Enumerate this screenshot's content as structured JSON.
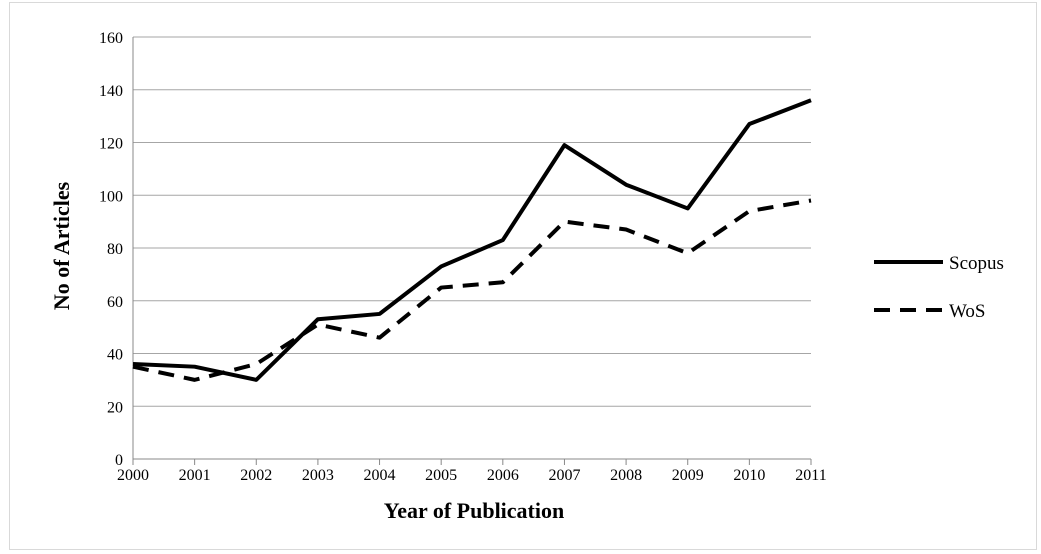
{
  "chart_data": {
    "type": "line",
    "title": "",
    "xlabel": "Year of Publication",
    "ylabel": "No of Articles",
    "x": [
      "2000",
      "2001",
      "2002",
      "2003",
      "2004",
      "2005",
      "2006",
      "2007",
      "2008",
      "2009",
      "2010",
      "2011"
    ],
    "ylim": [
      0,
      160
    ],
    "yticks": [
      "0",
      "20",
      "40",
      "60",
      "80",
      "100",
      "120",
      "140",
      "160"
    ],
    "grid": true,
    "legend_position": "right",
    "series": [
      {
        "name": "Scopus",
        "style": "solid",
        "color": "#000000",
        "values": [
          36,
          35,
          30,
          53,
          55,
          73,
          83,
          119,
          104,
          95,
          127,
          136
        ]
      },
      {
        "name": "WoS",
        "style": "dashed",
        "color": "#000000",
        "values": [
          35,
          30,
          36,
          51,
          46,
          65,
          67,
          90,
          87,
          78,
          94,
          98
        ]
      }
    ]
  }
}
